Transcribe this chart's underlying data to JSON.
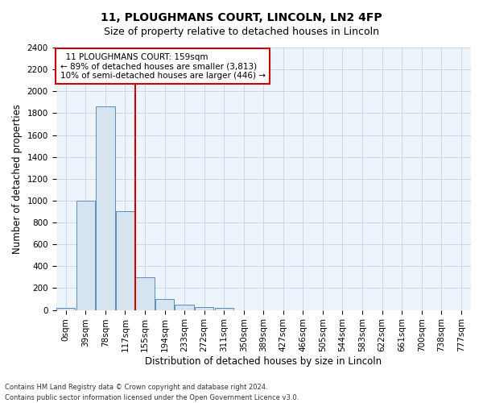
{
  "title_line1": "11, PLOUGHMANS COURT, LINCOLN, LN2 4FP",
  "title_line2": "Size of property relative to detached houses in Lincoln",
  "xlabel": "Distribution of detached houses by size in Lincoln",
  "ylabel": "Number of detached properties",
  "footer_line1": "Contains HM Land Registry data © Crown copyright and database right 2024.",
  "footer_line2": "Contains public sector information licensed under the Open Government Licence v3.0.",
  "annotation_line1": "  11 PLOUGHMANS COURT: 159sqm",
  "annotation_line2": "← 89% of detached houses are smaller (3,813)",
  "annotation_line3": "10% of semi-detached houses are larger (446) →",
  "bar_labels": [
    "0sqm",
    "39sqm",
    "78sqm",
    "117sqm",
    "155sqm",
    "194sqm",
    "233sqm",
    "272sqm",
    "311sqm",
    "350sqm",
    "389sqm",
    "427sqm",
    "466sqm",
    "505sqm",
    "544sqm",
    "583sqm",
    "622sqm",
    "661sqm",
    "700sqm",
    "738sqm",
    "777sqm"
  ],
  "bar_values": [
    20,
    1000,
    1860,
    900,
    300,
    100,
    50,
    30,
    20,
    0,
    0,
    0,
    0,
    0,
    0,
    0,
    0,
    0,
    0,
    0,
    0
  ],
  "red_line_x": 3.5,
  "bar_color": "#d6e4f0",
  "bar_edge_color": "#5b8db8",
  "red_line_color": "#cc0000",
  "grid_color": "#c8d8e8",
  "background_color": "#eef4fb",
  "ylim": [
    0,
    2400
  ],
  "yticks": [
    0,
    200,
    400,
    600,
    800,
    1000,
    1200,
    1400,
    1600,
    1800,
    2000,
    2200,
    2400
  ],
  "title1_fontsize": 10,
  "title2_fontsize": 9,
  "xlabel_fontsize": 8.5,
  "ylabel_fontsize": 8.5,
  "tick_fontsize": 7.5,
  "annot_fontsize": 7.5,
  "footer_fontsize": 6
}
